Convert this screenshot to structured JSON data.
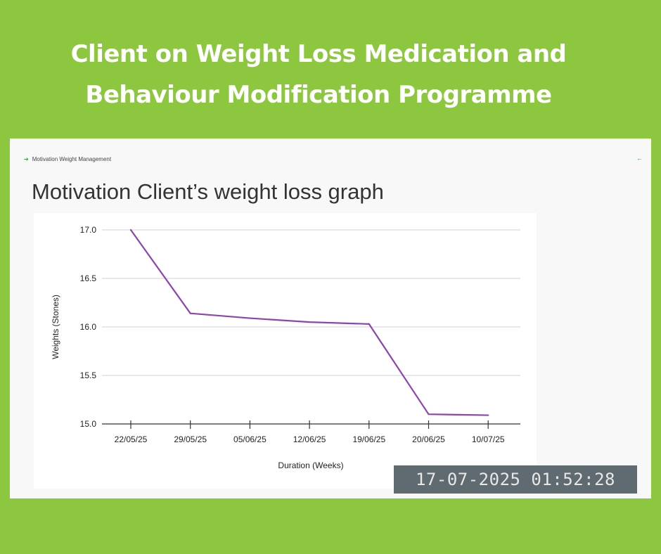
{
  "headline": {
    "line1": "Client on Weight Loss Medication and",
    "line2": "Behaviour Modification Programme"
  },
  "breadcrumb": {
    "label": "Motivation Weight Management",
    "arrow_icon": "arrow-right-icon"
  },
  "back_icon": "arrow-left-icon",
  "panel_title": "Motivation Client’s weight loss graph",
  "timestamp": "17-07-2025 01:52:28",
  "colors": {
    "background": "#8dc63f",
    "line": "#8e44ad",
    "accent": "#2e9a3a"
  },
  "chart_data": {
    "type": "line",
    "categories": [
      "22/05/25",
      "29/05/25",
      "05/06/25",
      "12/06/25",
      "19/06/25",
      "20/06/25",
      "10/07/25"
    ],
    "series": [
      {
        "values": [
          17.0,
          16.14,
          16.09,
          16.05,
          16.03,
          15.1,
          15.09
        ]
      }
    ],
    "xlabel": "Duration (Weeks)",
    "ylabel": "Weights (Stones)",
    "ylim": [
      15.0,
      17.0
    ],
    "yticks": [
      "15.0",
      "15.5",
      "16.0",
      "16.5",
      "17.0"
    ],
    "grid": true,
    "legend": "none"
  }
}
